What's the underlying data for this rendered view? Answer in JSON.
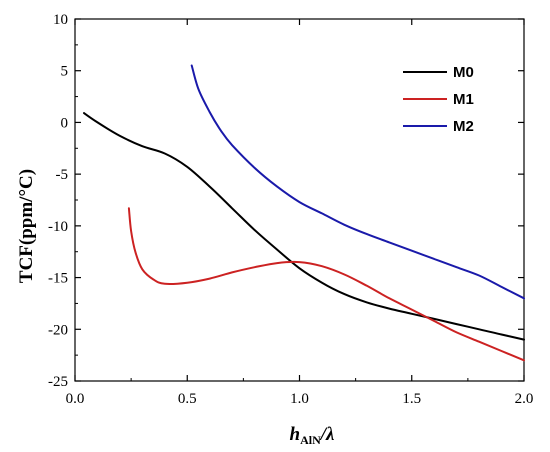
{
  "chart_data": {
    "type": "line",
    "xlabel": {
      "main": "h",
      "sub": "AlN",
      "rest": "/λ"
    },
    "ylabel": "TCF(ppm/°C)",
    "xlim": [
      0.0,
      2.0
    ],
    "ylim": [
      -25,
      10
    ],
    "xticks": [
      0.0,
      0.5,
      1.0,
      1.5,
      2.0
    ],
    "xtick_labels": [
      "0.0",
      "0.5",
      "1.0",
      "1.5",
      "2.0"
    ],
    "yticks": [
      -25,
      -20,
      -15,
      -10,
      -5,
      0,
      5,
      10
    ],
    "ytick_labels": [
      "-25",
      "-20",
      "-15",
      "-10",
      "-5",
      "0",
      "5",
      "10"
    ],
    "legend_position": "top-right",
    "grid": false,
    "series": [
      {
        "name": "M0",
        "color": "#000000",
        "points": [
          [
            0.04,
            0.9
          ],
          [
            0.1,
            0.0
          ],
          [
            0.2,
            -1.3
          ],
          [
            0.3,
            -2.3
          ],
          [
            0.4,
            -3.0
          ],
          [
            0.5,
            -4.3
          ],
          [
            0.6,
            -6.2
          ],
          [
            0.7,
            -8.3
          ],
          [
            0.8,
            -10.4
          ],
          [
            0.9,
            -12.3
          ],
          [
            1.0,
            -14.1
          ],
          [
            1.1,
            -15.5
          ],
          [
            1.2,
            -16.6
          ],
          [
            1.3,
            -17.4
          ],
          [
            1.4,
            -18.0
          ],
          [
            1.5,
            -18.5
          ],
          [
            1.6,
            -19.0
          ],
          [
            1.7,
            -19.5
          ],
          [
            1.8,
            -20.0
          ],
          [
            1.9,
            -20.5
          ],
          [
            2.0,
            -21.0
          ]
        ]
      },
      {
        "name": "M1",
        "color": "#cc2222",
        "points": [
          [
            0.24,
            -8.3
          ],
          [
            0.25,
            -10.5
          ],
          [
            0.27,
            -12.6
          ],
          [
            0.3,
            -14.2
          ],
          [
            0.35,
            -15.2
          ],
          [
            0.4,
            -15.6
          ],
          [
            0.5,
            -15.5
          ],
          [
            0.6,
            -15.1
          ],
          [
            0.7,
            -14.5
          ],
          [
            0.8,
            -14.0
          ],
          [
            0.9,
            -13.6
          ],
          [
            1.0,
            -13.5
          ],
          [
            1.1,
            -13.9
          ],
          [
            1.2,
            -14.7
          ],
          [
            1.3,
            -15.8
          ],
          [
            1.4,
            -17.0
          ],
          [
            1.5,
            -18.1
          ],
          [
            1.6,
            -19.2
          ],
          [
            1.7,
            -20.3
          ],
          [
            1.8,
            -21.2
          ],
          [
            1.9,
            -22.1
          ],
          [
            2.0,
            -23.0
          ]
        ]
      },
      {
        "name": "M2",
        "color": "#1a1aaa",
        "points": [
          [
            0.52,
            5.5
          ],
          [
            0.55,
            3.2
          ],
          [
            0.6,
            1.0
          ],
          [
            0.65,
            -0.8
          ],
          [
            0.7,
            -2.2
          ],
          [
            0.8,
            -4.4
          ],
          [
            0.9,
            -6.2
          ],
          [
            1.0,
            -7.7
          ],
          [
            1.1,
            -8.8
          ],
          [
            1.2,
            -9.9
          ],
          [
            1.3,
            -10.8
          ],
          [
            1.4,
            -11.6
          ],
          [
            1.5,
            -12.4
          ],
          [
            1.6,
            -13.2
          ],
          [
            1.7,
            -14.0
          ],
          [
            1.8,
            -14.8
          ],
          [
            1.9,
            -15.9
          ],
          [
            2.0,
            -17.0
          ]
        ]
      }
    ]
  }
}
